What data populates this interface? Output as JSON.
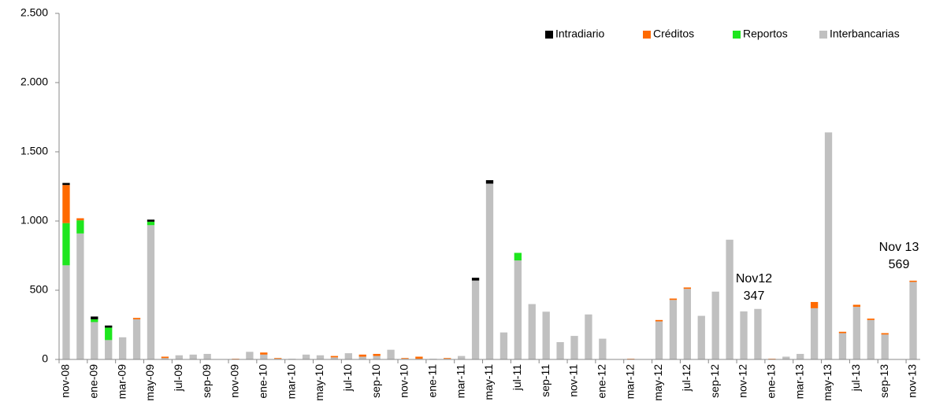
{
  "chart_data": {
    "type": "stacked_bar",
    "categories": [
      "nov-08",
      null,
      "ene-09",
      null,
      "mar-09",
      null,
      "may-09",
      null,
      "jul-09",
      null,
      "sep-09",
      null,
      "nov-09",
      null,
      "ene-10",
      null,
      "mar-10",
      null,
      "may-10",
      null,
      "jul-10",
      null,
      "sep-10",
      null,
      "nov-10",
      null,
      "ene-11",
      null,
      "mar-11",
      null,
      "may-11",
      null,
      "jul-11",
      null,
      "sep-11",
      null,
      "nov-11",
      null,
      "ene-12",
      null,
      "mar-12",
      null,
      "may-12",
      null,
      "jul-12",
      null,
      "sep-12",
      null,
      "nov-12",
      null,
      "ene-13",
      null,
      "mar-13",
      null,
      "may-13",
      null,
      "jul-13",
      null,
      "sep-13",
      null,
      "nov-13"
    ],
    "series": [
      {
        "name": "Interbancarias",
        "color": "#c0c0c0",
        "values": [
          680,
          910,
          270,
          140,
          160,
          290,
          970,
          10,
          30,
          35,
          40,
          0,
          0,
          55,
          35,
          5,
          5,
          35,
          30,
          15,
          45,
          20,
          25,
          70,
          5,
          5,
          5,
          5,
          25,
          570,
          1270,
          195,
          715,
          400,
          345,
          125,
          170,
          325,
          150,
          0,
          0,
          0,
          275,
          430,
          510,
          315,
          490,
          865,
          347,
          365,
          0,
          20,
          40,
          370,
          1640,
          190,
          380,
          285,
          180,
          0,
          560
        ]
      },
      {
        "name": "Reportos",
        "color": "#1ee61e",
        "values": [
          305,
          95,
          20,
          90,
          0,
          0,
          25,
          0,
          0,
          0,
          0,
          0,
          0,
          0,
          0,
          0,
          0,
          0,
          0,
          0,
          0,
          0,
          0,
          0,
          0,
          0,
          0,
          0,
          0,
          0,
          0,
          0,
          55,
          0,
          0,
          0,
          0,
          0,
          0,
          0,
          0,
          0,
          0,
          0,
          0,
          0,
          0,
          0,
          0,
          0,
          0,
          0,
          0,
          0,
          0,
          0,
          0,
          0,
          0,
          0,
          0
        ]
      },
      {
        "name": "Créditos",
        "color": "#ff6a00",
        "values": [
          275,
          15,
          0,
          0,
          0,
          10,
          0,
          10,
          0,
          0,
          0,
          0,
          5,
          0,
          15,
          5,
          0,
          0,
          0,
          10,
          0,
          15,
          15,
          0,
          5,
          15,
          0,
          5,
          0,
          0,
          0,
          0,
          0,
          0,
          0,
          0,
          0,
          0,
          0,
          0,
          5,
          0,
          10,
          10,
          10,
          0,
          0,
          0,
          0,
          0,
          5,
          0,
          0,
          45,
          0,
          10,
          15,
          10,
          10,
          0,
          9
        ]
      },
      {
        "name": "Intradiario",
        "color": "#000000",
        "values": [
          15,
          0,
          20,
          15,
          0,
          0,
          15,
          0,
          0,
          0,
          0,
          0,
          0,
          0,
          0,
          0,
          0,
          0,
          0,
          0,
          0,
          0,
          0,
          0,
          0,
          0,
          0,
          0,
          0,
          20,
          25,
          0,
          0,
          0,
          0,
          0,
          0,
          0,
          0,
          0,
          0,
          0,
          0,
          0,
          0,
          0,
          0,
          0,
          0,
          0,
          0,
          0,
          0,
          0,
          0,
          0,
          0,
          0,
          0,
          0,
          0
        ]
      }
    ],
    "ylim": [
      0,
      2500
    ],
    "yticks": [
      0,
      500,
      {
        "value": 1000,
        "label": "1.000"
      },
      {
        "value": 1500,
        "label": "1.500"
      },
      {
        "value": 2000,
        "label": "2.000"
      },
      {
        "value": 2500,
        "label": "2.500"
      }
    ],
    "legend": "top-right",
    "annotations": [
      [
        "Nov12",
        "347"
      ],
      [
        "Nov 13",
        "569"
      ]
    ]
  }
}
